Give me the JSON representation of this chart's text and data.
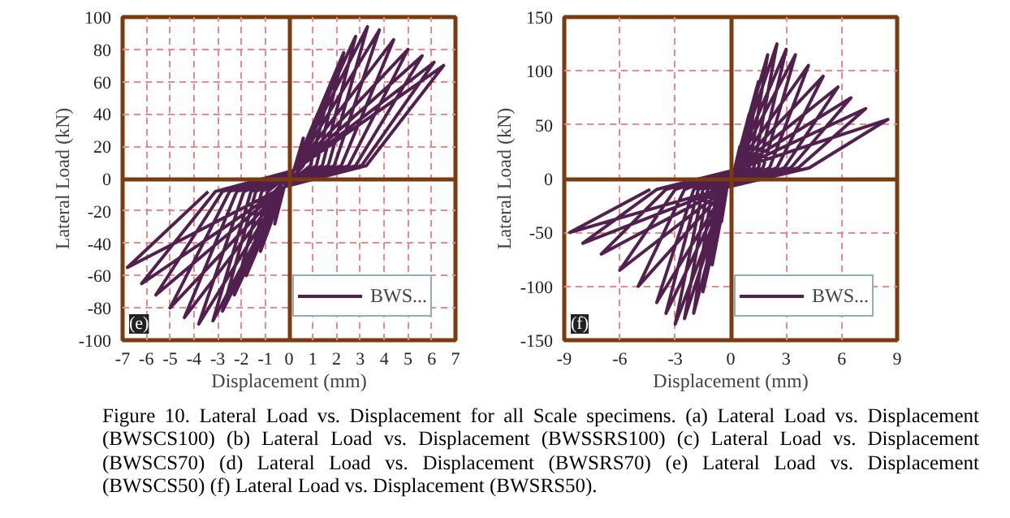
{
  "chart_data": [
    {
      "type": "line",
      "xlabel": "Displacement (mm)",
      "ylabel": "Lateral Load (kN)",
      "xlim": [
        -7,
        7
      ],
      "ylim": [
        -100,
        100
      ],
      "xticks": [
        -7,
        -6,
        -5,
        -4,
        -3,
        -2,
        -1,
        0,
        1,
        2,
        3,
        4,
        5,
        6,
        7
      ],
      "yticks": [
        -100,
        -80,
        -60,
        -40,
        -20,
        0,
        20,
        40,
        60,
        80,
        100
      ],
      "grid": true,
      "legend": "bottom right",
      "annotations": [
        "(e)"
      ],
      "series": [
        {
          "name": "BWS...",
          "color": "#52204f",
          "x": [
            0.2,
            0.6,
            0.3,
            -0.2,
            -0.6,
            -0.3,
            0.2,
            1.2,
            0.6,
            -0.2,
            -1.2,
            -0.6,
            0.2,
            1.8,
            0.9,
            -0.2,
            -1.8,
            -0.9,
            0.2,
            2.3,
            1.15,
            -0.2,
            -2.3,
            -1.15,
            0.2,
            2.8,
            1.4,
            -0.2,
            -2.8,
            -1.4,
            0.2,
            3.3,
            1.65,
            -0.2,
            -3.2,
            -1.6,
            0.2,
            3.8,
            1.9,
            -0.2,
            -3.8,
            -1.9,
            0.2,
            4.4,
            2.2,
            -0.2,
            -4.4,
            -2.2,
            0.2,
            5.0,
            2.5,
            -0.2,
            -5.0,
            -2.5,
            0.2,
            5.6,
            2.8,
            -0.2,
            -5.6,
            -2.8,
            0.2,
            6.1,
            3.05,
            -0.2,
            -6.2,
            -3.1,
            0.2,
            6.5,
            3.25,
            -0.2,
            -6.8,
            -3.4
          ],
          "values": [
            5,
            25,
            8,
            -5,
            -28,
            -8,
            5,
            40,
            8,
            -5,
            -45,
            -8,
            5,
            60,
            8,
            -5,
            -60,
            -8,
            5,
            78,
            8,
            -5,
            -72,
            -8,
            5,
            88,
            8,
            -5,
            -82,
            -8,
            5,
            94,
            8,
            -5,
            -88,
            -8,
            5,
            92,
            8,
            -5,
            -90,
            -8,
            5,
            86,
            8,
            -5,
            -86,
            -8,
            5,
            80,
            8,
            -5,
            -80,
            -8,
            5,
            76,
            8,
            -5,
            -72,
            -8,
            5,
            72,
            8,
            -5,
            -65,
            -8,
            5,
            70,
            8,
            -5,
            -55,
            -8
          ]
        }
      ]
    },
    {
      "type": "line",
      "xlabel": "Displacement (mm)",
      "ylabel": "Lateral Load (kN)",
      "xlim": [
        -9,
        9
      ],
      "ylim": [
        -150,
        150
      ],
      "xticks": [
        -9,
        -6,
        -3,
        0,
        3,
        6,
        9
      ],
      "yticks": [
        -150,
        -100,
        -50,
        0,
        50,
        100,
        150
      ],
      "grid": true,
      "legend": "bottom right",
      "annotations": [
        "(f)",
        "Figure 10. Lateral Load vs. Displacement for all Scale specimens. (a) Lateral Load vs. Displacement (BWSCS100) (b) Lateral Load vs. Displacement (BWSSRS100) (c) Lateral Load vs. Displacement (BWSCS70) (d) Lateral Load vs. Displacement (BWSRS70) (e) Lateral Load vs. Displacement (BWSCS50) (f) Lateral Load vs. Displacement (BWSRS50)."
      ],
      "series": [
        {
          "name": "BWS...",
          "color": "#52204f",
          "x": [
            0.2,
            0.5,
            0.25,
            -0.2,
            -0.5,
            -0.25,
            0.2,
            1.0,
            0.5,
            -0.2,
            -1.0,
            -0.5,
            0.2,
            1.5,
            0.75,
            -0.2,
            -1.5,
            -0.75,
            0.2,
            2.0,
            1.0,
            -0.2,
            -2.0,
            -1.0,
            0.2,
            2.5,
            1.25,
            -0.2,
            -2.5,
            -1.25,
            0.2,
            3.0,
            1.5,
            -0.2,
            -3.0,
            -1.5,
            0.2,
            3.5,
            1.75,
            -0.2,
            -3.5,
            -1.75,
            0.2,
            4.2,
            2.1,
            -0.2,
            -4.0,
            -2.0,
            0.2,
            5.0,
            2.5,
            -0.2,
            -5.0,
            -2.5,
            0.2,
            5.8,
            2.9,
            -0.2,
            -6.0,
            -3.0,
            0.2,
            6.5,
            3.25,
            -0.2,
            -7.0,
            -3.5,
            0.2,
            7.3,
            3.65,
            -0.2,
            -8.0,
            -4.0,
            0.2,
            8.5,
            4.25,
            -0.2,
            -8.7,
            -4.35
          ],
          "values": [
            8,
            30,
            10,
            -8,
            -40,
            -10,
            8,
            60,
            10,
            -8,
            -80,
            -10,
            8,
            90,
            10,
            -8,
            -105,
            -10,
            8,
            115,
            10,
            -8,
            -125,
            -10,
            8,
            125,
            10,
            -8,
            -130,
            -10,
            8,
            120,
            10,
            -8,
            -135,
            -10,
            8,
            115,
            10,
            -8,
            -125,
            -10,
            8,
            105,
            10,
            -8,
            -115,
            -10,
            8,
            95,
            10,
            -8,
            -100,
            -10,
            8,
            85,
            10,
            -8,
            -85,
            -10,
            8,
            75,
            10,
            -8,
            -70,
            -10,
            8,
            65,
            10,
            -8,
            -60,
            -10,
            8,
            55,
            10,
            -8,
            -50,
            -10
          ]
        }
      ]
    }
  ]
}
